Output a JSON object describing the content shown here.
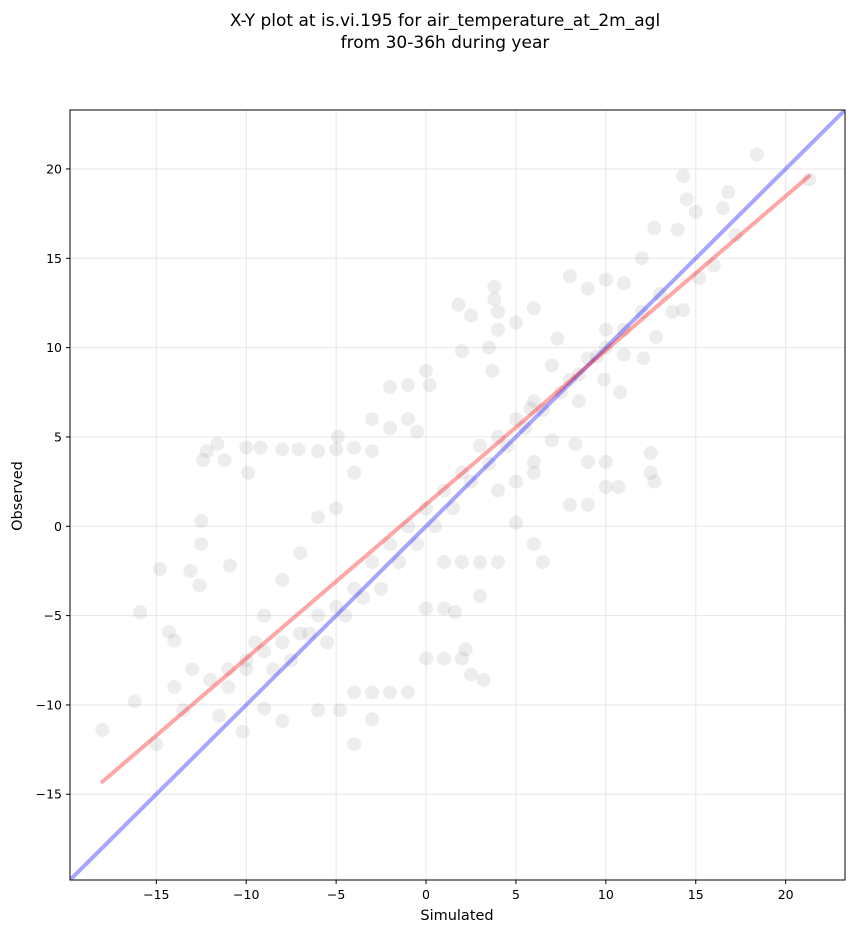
{
  "chart_data": {
    "type": "scatter",
    "title": [
      "X-Y plot at is.vi.195 for air_temperature_at_2m_agl",
      "from 30-36h during year"
    ],
    "xlabel": "Simulated",
    "ylabel": "Observed",
    "xlim": [
      -19.8,
      23.3
    ],
    "ylim": [
      -19.8,
      23.3
    ],
    "xticks": [
      -15,
      -10,
      -5,
      0,
      5,
      10,
      15,
      20
    ],
    "yticks": [
      -15,
      -10,
      -5,
      0,
      5,
      10,
      15,
      20
    ],
    "xtick_labels": [
      "−15",
      "−10",
      "−5",
      "0",
      "5",
      "10",
      "15",
      "20"
    ],
    "ytick_labels": [
      "−15",
      "−10",
      "−5",
      "0",
      "5",
      "10",
      "15",
      "20"
    ],
    "grid": true,
    "legend": false,
    "series": [
      {
        "kind": "points",
        "color": "#000000",
        "alpha": 0.07,
        "values": [
          [
            -18.0,
            -11.4
          ],
          [
            -15.9,
            -4.8
          ],
          [
            -16.2,
            -9.8
          ],
          [
            -15.0,
            -12.2
          ],
          [
            -14.3,
            -5.9
          ],
          [
            -14.8,
            -2.4
          ],
          [
            -14.0,
            -6.4
          ],
          [
            -13.1,
            -2.5
          ],
          [
            -12.6,
            -3.3
          ],
          [
            -12.4,
            3.7
          ],
          [
            -12.2,
            4.2
          ],
          [
            -11.6,
            4.6
          ],
          [
            -11.2,
            3.7
          ],
          [
            -10.9,
            -2.2
          ],
          [
            -10.0,
            4.4
          ],
          [
            -9.2,
            4.4
          ],
          [
            -8.0,
            4.3
          ],
          [
            -7.1,
            4.3
          ],
          [
            -6.0,
            4.2
          ],
          [
            -5.0,
            4.3
          ],
          [
            -4.9,
            5.0
          ],
          [
            -4.0,
            4.4
          ],
          [
            -3.0,
            4.2
          ],
          [
            -2.0,
            7.8
          ],
          [
            -1.0,
            7.9
          ],
          [
            0.0,
            8.7
          ],
          [
            0.2,
            7.9
          ],
          [
            -9.9,
            3.0
          ],
          [
            -12.5,
            0.3
          ],
          [
            -12.5,
            -1.0
          ],
          [
            -10.2,
            -11.5
          ],
          [
            -9.0,
            -10.2
          ],
          [
            -8.0,
            -10.9
          ],
          [
            -6.0,
            -10.3
          ],
          [
            -4.8,
            -10.3
          ],
          [
            -4.0,
            -12.2
          ],
          [
            -3.0,
            -10.8
          ],
          [
            -4.0,
            -9.3
          ],
          [
            -3.0,
            -9.3
          ],
          [
            -2.0,
            -9.3
          ],
          [
            -1.0,
            -9.3
          ],
          [
            0.0,
            -7.4
          ],
          [
            1.0,
            -7.4
          ],
          [
            2.0,
            -7.4
          ],
          [
            2.5,
            -8.3
          ],
          [
            3.2,
            -8.6
          ],
          [
            2.2,
            -6.9
          ],
          [
            1.6,
            -4.8
          ],
          [
            1.0,
            -4.6
          ],
          [
            0.0,
            -4.6
          ],
          [
            3.0,
            -3.9
          ],
          [
            1.0,
            -2.0
          ],
          [
            2.0,
            -2.0
          ],
          [
            3.0,
            -2.0
          ],
          [
            4.0,
            -2.0
          ],
          [
            5.0,
            0.2
          ],
          [
            6.0,
            -1.0
          ],
          [
            6.5,
            -2.0
          ],
          [
            8.0,
            1.2
          ],
          [
            9.0,
            1.2
          ],
          [
            10.0,
            2.2
          ],
          [
            10.7,
            2.2
          ],
          [
            12.5,
            3.0
          ],
          [
            12.5,
            4.1
          ],
          [
            12.7,
            2.5
          ],
          [
            10.8,
            7.5
          ],
          [
            11.0,
            9.6
          ],
          [
            10.0,
            3.6
          ],
          [
            9.0,
            3.6
          ],
          [
            7.0,
            4.8
          ],
          [
            6.0,
            3.6
          ],
          [
            8.3,
            4.6
          ],
          [
            12.1,
            9.4
          ],
          [
            12.8,
            10.6
          ],
          [
            14.3,
            12.1
          ],
          [
            13.7,
            12.0
          ],
          [
            15.2,
            13.9
          ],
          [
            16.0,
            14.6
          ],
          [
            16.5,
            17.8
          ],
          [
            16.8,
            18.7
          ],
          [
            17.2,
            16.3
          ],
          [
            15.0,
            17.6
          ],
          [
            14.0,
            16.6
          ],
          [
            14.5,
            18.3
          ],
          [
            14.3,
            19.6
          ],
          [
            18.4,
            20.8
          ],
          [
            21.3,
            19.4
          ],
          [
            12.7,
            16.7
          ],
          [
            12.0,
            15.0
          ],
          [
            11.0,
            13.6
          ],
          [
            10.0,
            13.8
          ],
          [
            9.0,
            13.3
          ],
          [
            8.0,
            14.0
          ],
          [
            6.0,
            12.2
          ],
          [
            5.0,
            11.4
          ],
          [
            4.0,
            12.0
          ],
          [
            3.8,
            12.7
          ],
          [
            4.0,
            11.0
          ],
          [
            3.5,
            10.0
          ],
          [
            2.5,
            11.8
          ],
          [
            1.8,
            12.4
          ],
          [
            3.8,
            13.4
          ],
          [
            3.7,
            8.7
          ],
          [
            2.0,
            9.8
          ],
          [
            5.8,
            6.6
          ],
          [
            6.0,
            3.0
          ],
          [
            5.0,
            2.5
          ],
          [
            8.5,
            7.0
          ],
          [
            8.0,
            8.2
          ],
          [
            7.0,
            9.0
          ],
          [
            7.3,
            10.5
          ],
          [
            9.0,
            9.4
          ],
          [
            9.9,
            8.2
          ],
          [
            10.0,
            11.0
          ],
          [
            11.0,
            11.0
          ],
          [
            12.0,
            12.0
          ],
          [
            13.0,
            13.0
          ],
          [
            10.0,
            10.0
          ],
          [
            4.0,
            2.0
          ],
          [
            -0.5,
            5.3
          ],
          [
            -1.0,
            6.0
          ],
          [
            -2.0,
            5.5
          ],
          [
            -3.0,
            6.0
          ],
          [
            -4.0,
            3.0
          ],
          [
            -5.0,
            1.0
          ],
          [
            -6.0,
            0.5
          ],
          [
            -7.0,
            -1.5
          ],
          [
            -8.0,
            -3.0
          ],
          [
            -9.0,
            -5.0
          ],
          [
            -9.5,
            -6.5
          ],
          [
            -10.0,
            -8.0
          ],
          [
            -11.0,
            -9.0
          ],
          [
            -12.0,
            -8.6
          ],
          [
            -13.0,
            -8.0
          ],
          [
            -14.0,
            -9.0
          ],
          [
            -13.5,
            -10.3
          ],
          [
            -11.5,
            -10.6
          ],
          [
            -8.5,
            -8.0
          ],
          [
            -7.5,
            -7.5
          ],
          [
            -6.5,
            -6.0
          ],
          [
            -5.5,
            -6.5
          ],
          [
            -4.5,
            -5.0
          ],
          [
            -3.5,
            -4.0
          ],
          [
            -2.5,
            -3.5
          ],
          [
            -1.5,
            -2.0
          ],
          [
            -0.5,
            -1.0
          ],
          [
            0.5,
            0.0
          ],
          [
            1.5,
            1.0
          ],
          [
            2.5,
            2.5
          ],
          [
            3.5,
            3.5
          ],
          [
            4.5,
            4.5
          ],
          [
            5.5,
            5.5
          ],
          [
            6.5,
            6.5
          ],
          [
            7.5,
            7.5
          ],
          [
            8.5,
            8.5
          ],
          [
            9.5,
            9.5
          ],
          [
            2.0,
            3.0
          ],
          [
            3.0,
            4.5
          ],
          [
            1.0,
            2.0
          ],
          [
            0.0,
            1.0
          ],
          [
            -1.0,
            0.0
          ],
          [
            4.0,
            5.0
          ],
          [
            5.0,
            6.0
          ],
          [
            6.0,
            7.0
          ],
          [
            -2.0,
            -1.0
          ],
          [
            -3.0,
            -2.0
          ],
          [
            -4.0,
            -3.5
          ],
          [
            -5.0,
            -4.5
          ],
          [
            -6.0,
            -5.0
          ],
          [
            -7.0,
            -6.0
          ],
          [
            -8.0,
            -6.5
          ],
          [
            -9.0,
            -7.0
          ],
          [
            -10.0,
            -7.5
          ],
          [
            -11.0,
            -8.0
          ]
        ]
      },
      {
        "kind": "line",
        "name": "",
        "color": "#0000ff",
        "alpha": 0.35,
        "points": [
          [
            -19.8,
            -19.8
          ],
          [
            23.3,
            23.3
          ]
        ]
      },
      {
        "kind": "line",
        "name": "",
        "color": "#ff0000",
        "alpha": 0.35,
        "points": [
          [
            -18.0,
            -14.3
          ],
          [
            21.3,
            19.6
          ]
        ]
      }
    ]
  }
}
